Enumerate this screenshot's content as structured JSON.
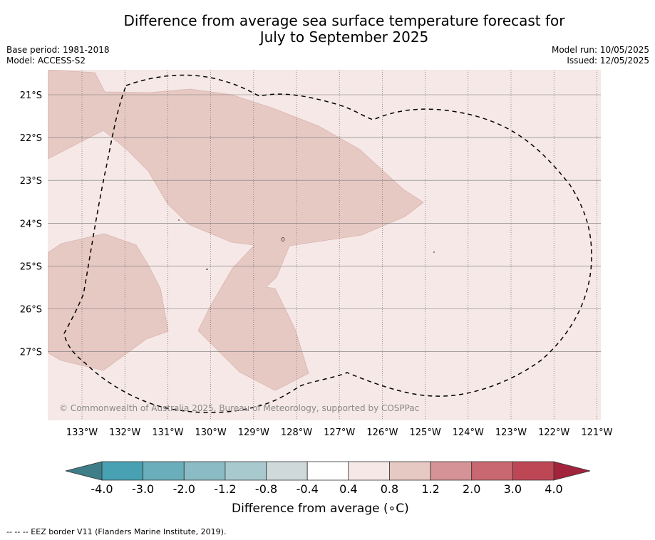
{
  "title": "Difference from average sea surface temperature forecast for\nJuly to September 2025",
  "meta_left": {
    "base_period": "Base period: 1981-2018",
    "model": "Model: ACCESS-S2"
  },
  "meta_right": {
    "model_run": "Model run: 10/05/2025",
    "issued": "Issued: 12/05/2025"
  },
  "map": {
    "lat_labels": [
      "21°S",
      "22°S",
      "23°S",
      "24°S",
      "25°S",
      "26°S",
      "27°S"
    ],
    "lon_labels": [
      "133°W",
      "132°W",
      "131°W",
      "130°W",
      "129°W",
      "128°W",
      "127°W",
      "126°W",
      "125°W",
      "124°W",
      "123°W",
      "122°W",
      "121°W"
    ],
    "lat_values": [
      -21,
      -22,
      -23,
      -24,
      -25,
      -26,
      -27
    ],
    "lon_values": [
      -133,
      -132,
      -131,
      -130,
      -129,
      -128,
      -127,
      -126,
      -125,
      -124,
      -123,
      -122,
      -121
    ],
    "copyright": "© Commonwealth of Australia 2025, Bureau of Meteorology, supported by COSPPac",
    "background_color": "#f5e8e6",
    "anomaly_color": "#e7c9c4",
    "eez_line_style": "dashed",
    "grid_style": "dotted"
  },
  "colorbar": {
    "label": "Difference from average (∘C)",
    "ticks": [
      "-4.0",
      "-3.0",
      "-2.0",
      "-1.2",
      "-0.8",
      "-0.4",
      "0.4",
      "0.8",
      "1.2",
      "2.0",
      "3.0",
      "4.0"
    ],
    "colors": [
      "#48a1b2",
      "#6aaebb",
      "#8bbcc5",
      "#a8c9ce",
      "#d0d9da",
      "#ffffff",
      "#f5e8e6",
      "#e7c9c4",
      "#d69397",
      "#c96870",
      "#be4756"
    ],
    "low_extension_color": "#3f7e88",
    "high_extension_color": "#a2233c"
  },
  "footnote": "--  --  -- EEZ border V11 (Flanders Marine Institute, 2019)."
}
